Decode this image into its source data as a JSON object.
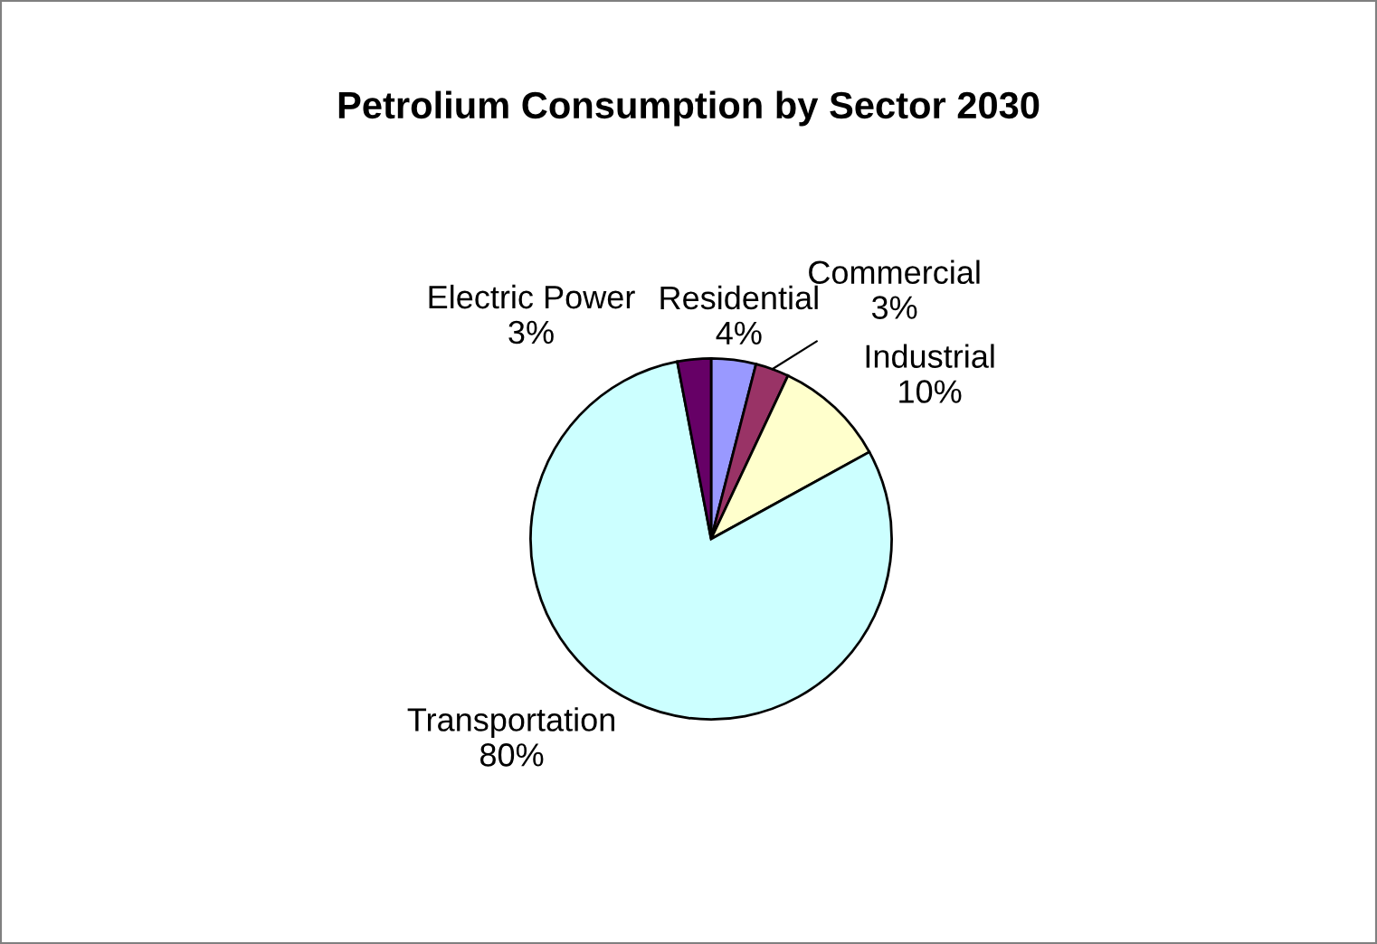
{
  "chart_data": {
    "type": "pie",
    "title": "Petrolium Consumption by Sector 2030",
    "categories": [
      "Residential",
      "Commercial",
      "Industrial",
      "Transportation",
      "Electric Power"
    ],
    "values": [
      4,
      3,
      10,
      80,
      3
    ],
    "value_labels": [
      "4%",
      "3%",
      "10%",
      "80%",
      "3%"
    ],
    "colors": [
      "#9999ff",
      "#993366",
      "#ffffcc",
      "#ccffff",
      "#660066"
    ],
    "legend": false
  }
}
